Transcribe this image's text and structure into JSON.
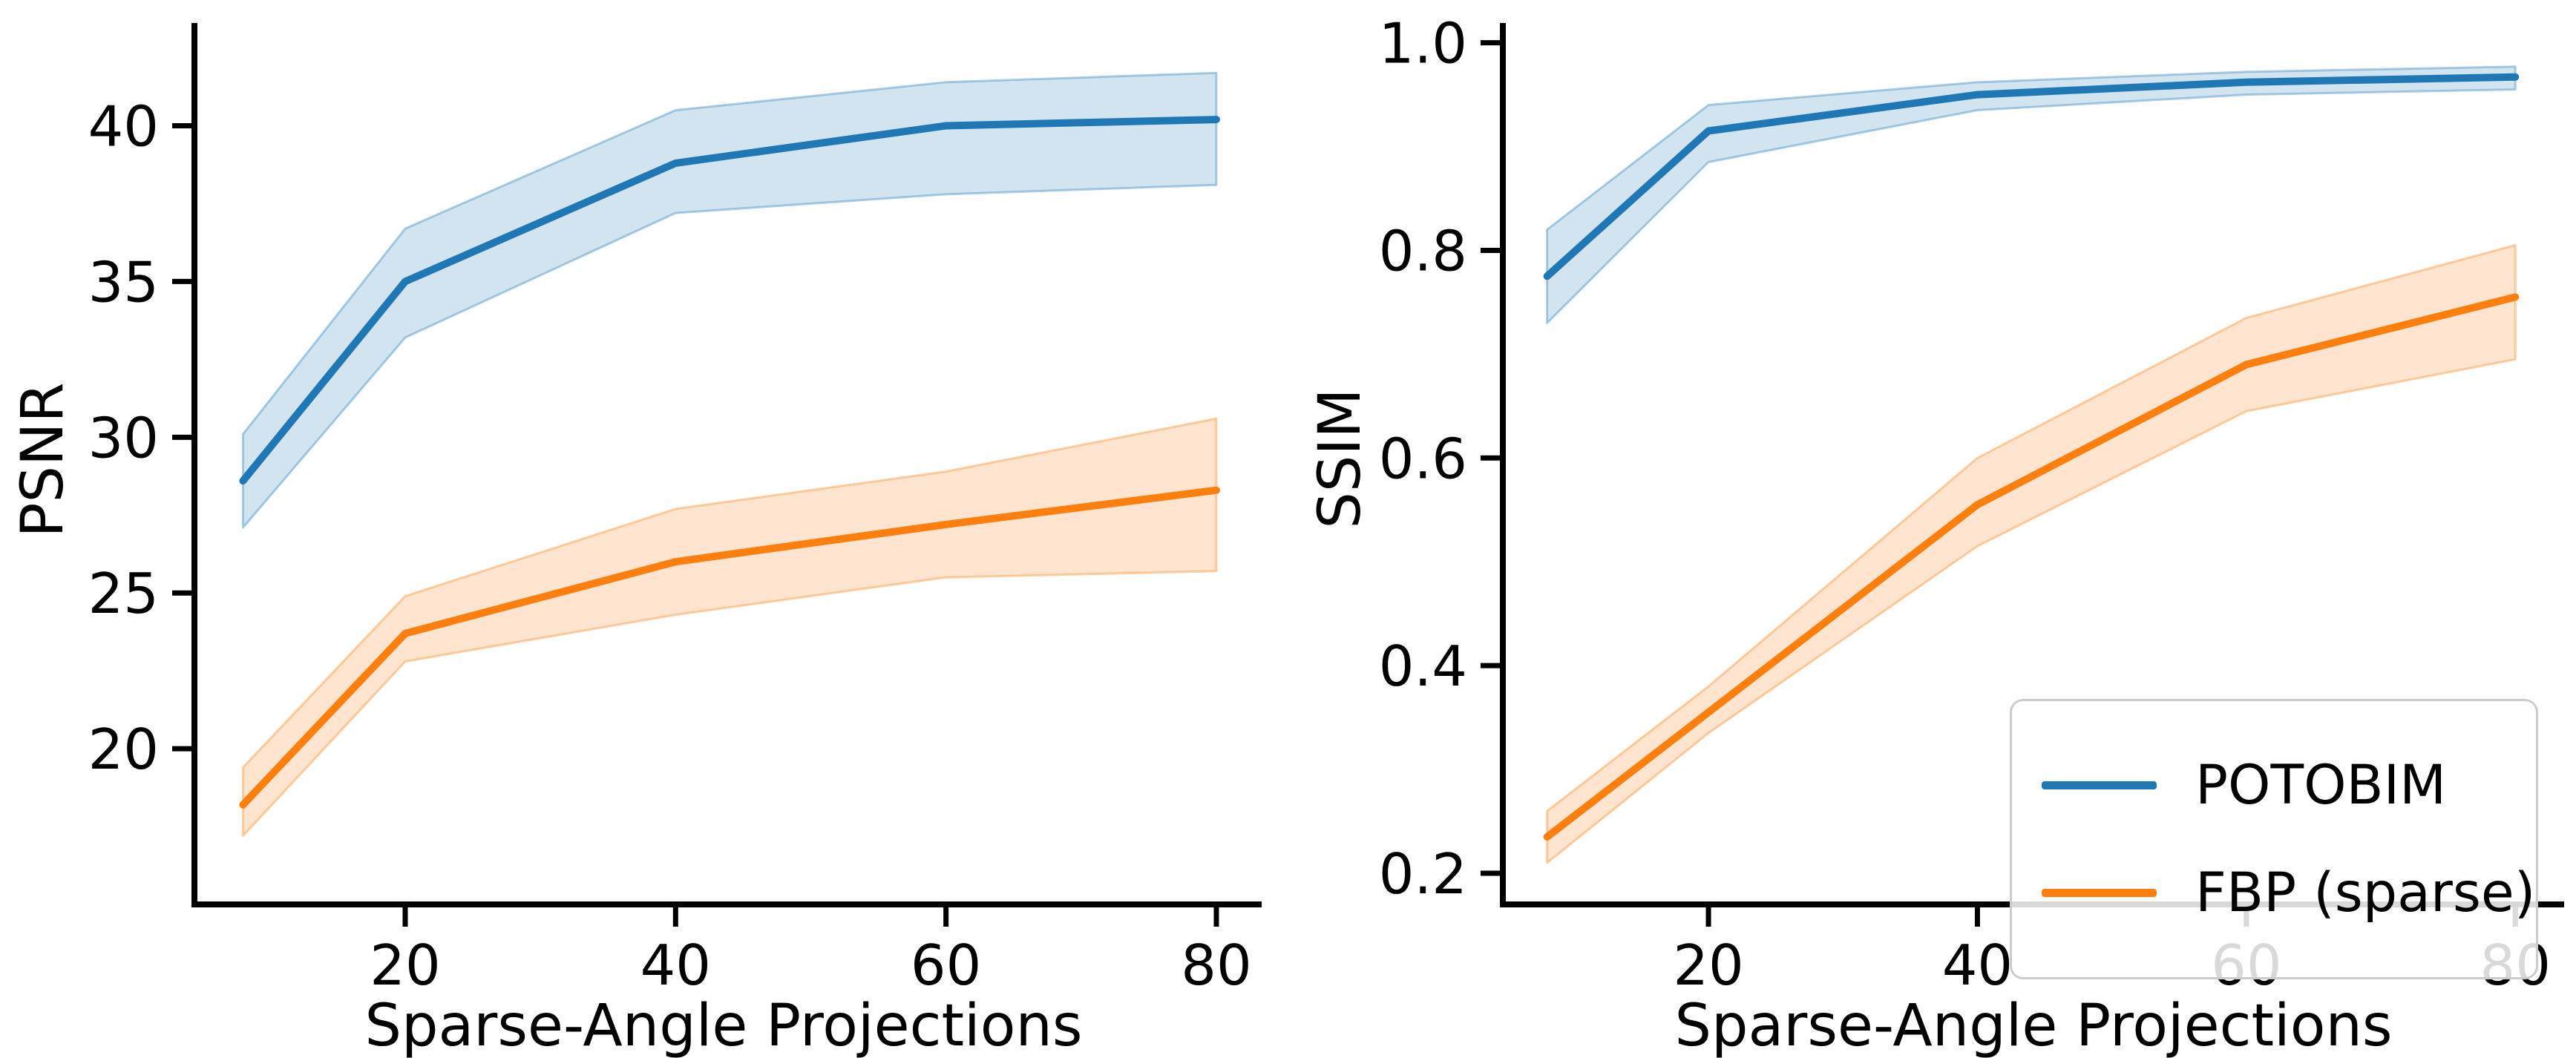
{
  "figure": {
    "background": "#ffffff"
  },
  "colors": {
    "potobim": "#1f77b4",
    "fbp": "#ff7f0e",
    "axis": "#000000",
    "legend_border": "#cccccc"
  },
  "legend": {
    "entries": [
      {
        "label": "POTOBIM",
        "color": "#1f77b4"
      },
      {
        "label": "FBP (sparse)",
        "color": "#ff7f0e"
      }
    ],
    "position": "lower right"
  },
  "chart_data": [
    {
      "type": "line",
      "id": "psnr",
      "title": "",
      "xlabel": "Sparse-Angle Projections",
      "ylabel": "PSNR",
      "x": [
        8,
        20,
        40,
        60,
        80
      ],
      "series": [
        {
          "name": "POTOBIM",
          "color": "#1f77b4",
          "values": [
            28.6,
            35.0,
            38.8,
            40.0,
            40.2
          ],
          "band_low": [
            27.1,
            33.2,
            37.2,
            37.8,
            38.1
          ],
          "band_high": [
            30.1,
            36.7,
            40.5,
            41.4,
            41.7
          ]
        },
        {
          "name": "FBP (sparse)",
          "color": "#ff7f0e",
          "values": [
            18.2,
            23.7,
            26.0,
            27.2,
            28.3
          ],
          "band_low": [
            17.2,
            22.8,
            24.3,
            25.5,
            25.7
          ],
          "band_high": [
            19.4,
            24.9,
            27.7,
            28.9,
            30.6
          ]
        }
      ],
      "xticks": [
        20,
        40,
        60,
        80
      ],
      "xticklabels": [
        "20",
        "40",
        "60",
        "80"
      ],
      "yticks": [
        20,
        25,
        30,
        35,
        40
      ],
      "yticklabels": [
        "20",
        "25",
        "30",
        "35",
        "40"
      ],
      "xlim": [
        4.41,
        83.35
      ],
      "ylim": [
        15.0,
        43.3
      ],
      "grid": false,
      "legend": false
    },
    {
      "type": "line",
      "id": "ssim",
      "title": "",
      "xlabel": "Sparse-Angle Projections",
      "ylabel": "SSIM",
      "x": [
        8,
        20,
        40,
        60,
        80
      ],
      "series": [
        {
          "name": "POTOBIM",
          "color": "#1f77b4",
          "values": [
            0.775,
            0.915,
            0.95,
            0.962,
            0.967
          ],
          "band_low": [
            0.73,
            0.885,
            0.935,
            0.95,
            0.955
          ],
          "band_high": [
            0.82,
            0.94,
            0.962,
            0.972,
            0.977
          ]
        },
        {
          "name": "FBP (sparse)",
          "color": "#ff7f0e",
          "values": [
            0.235,
            0.355,
            0.555,
            0.69,
            0.755
          ],
          "band_low": [
            0.21,
            0.335,
            0.515,
            0.645,
            0.695
          ],
          "band_high": [
            0.26,
            0.38,
            0.6,
            0.735,
            0.805
          ]
        }
      ],
      "xticks": [
        20,
        40,
        60,
        80
      ],
      "xticklabels": [
        "20",
        "40",
        "60",
        "80"
      ],
      "yticks": [
        0.2,
        0.4,
        0.6,
        0.8,
        1.0
      ],
      "yticklabels": [
        "0.2",
        "0.4",
        "0.6",
        "0.8",
        "1.0"
      ],
      "xlim": [
        4.71,
        83.63
      ],
      "ylim": [
        0.17,
        1.019
      ],
      "grid": false,
      "legend": true,
      "legend_position": "lower right"
    }
  ]
}
